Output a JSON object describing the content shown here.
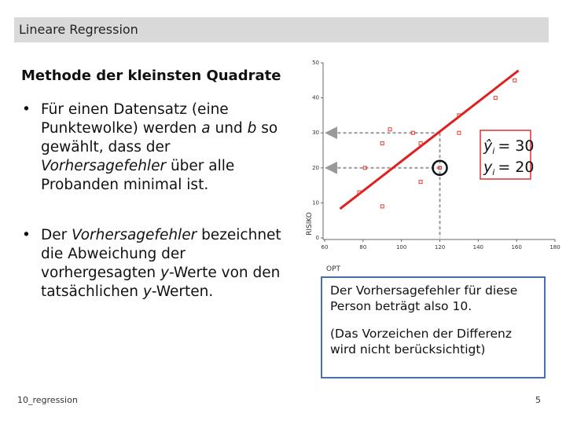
{
  "header": {
    "title": "Lineare Regression"
  },
  "heading": "Methode der kleinsten Quadrate",
  "bullets": [
    [
      {
        "text": "Für einen Datensatz (eine Punktewolke) werden "
      },
      {
        "text": "a",
        "italic": true
      },
      {
        "text": " und "
      },
      {
        "text": "b",
        "italic": true
      },
      {
        "text": " so gewählt, dass der "
      },
      {
        "text": "Vorhersagefehler",
        "italic": true
      },
      {
        "text": " über alle Probanden minimal ist."
      }
    ],
    [
      {
        "text": "Der "
      },
      {
        "text": "Vorhersagefehler",
        "italic": true
      },
      {
        "text": " bezeichnet die Abweichung der vorhergesagten "
      },
      {
        "text": "y",
        "italic": true
      },
      {
        "text": "-Werte von den tatsächlichen "
      },
      {
        "text": "y",
        "italic": true
      },
      {
        "text": "-Werten."
      }
    ]
  ],
  "chart_data": {
    "type": "scatter",
    "x_label": "OPT",
    "y_label": "RISIKO",
    "xlim": [
      60,
      180
    ],
    "xticks": [
      60,
      80,
      100,
      120,
      140,
      160,
      180
    ],
    "ylim": [
      0,
      50
    ],
    "yticks": [
      0,
      10,
      20,
      30,
      40,
      50
    ],
    "series": [
      {
        "color": "#e03c31",
        "x": [
          78,
          90,
          90,
          94,
          106,
          110,
          120,
          110,
          130,
          130,
          149,
          159,
          81
        ],
        "y": [
          13,
          9,
          27,
          31,
          30,
          27,
          20,
          16,
          35,
          30,
          40,
          45,
          20
        ]
      }
    ],
    "regression_line": {
      "color": "#e02020",
      "x": [
        68,
        161
      ],
      "y": [
        8.3,
        47.8
      ]
    },
    "highlight": {
      "x": 120,
      "predicted": {
        "symbol": "ŷ",
        "sub": "i",
        "text": "= 30",
        "value": 30
      },
      "observed": {
        "symbol": "y",
        "sub": "i",
        "text": "= 20",
        "value": 20
      }
    }
  },
  "note_box": {
    "lines": [
      "Der Vorhersagefehler für diese Person beträgt also 10.",
      "(Das Vorzeichen der Differenz wird nicht berücksichtigt)"
    ]
  },
  "footer": {
    "source": "10_regression",
    "page": "5"
  }
}
